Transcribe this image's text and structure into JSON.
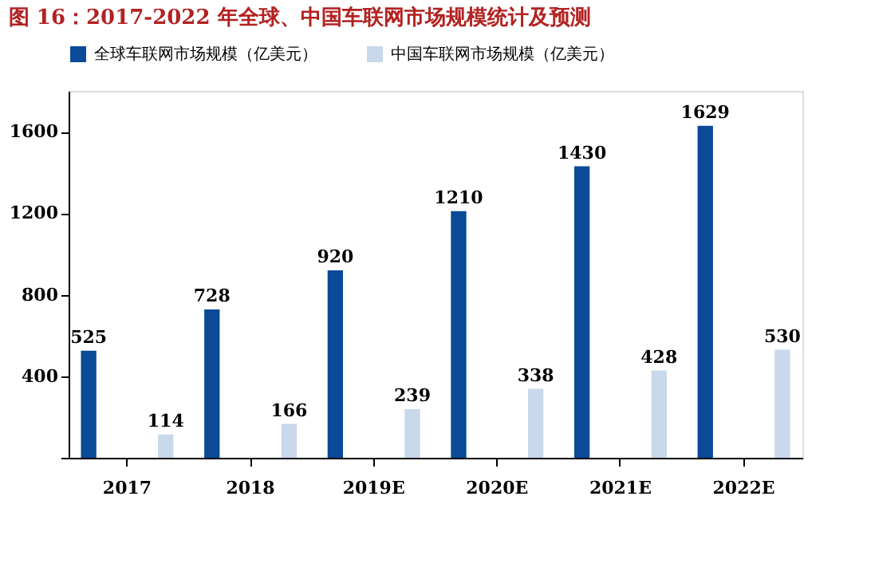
{
  "chart_data": {
    "type": "bar",
    "title": "图 16：2017-2022 年全球、中国车联网市场规模统计及预测",
    "categories": [
      "2017",
      "2018",
      "2019E",
      "2020E",
      "2021E",
      "2022E"
    ],
    "series": [
      {
        "name": "全球车联网市场规模（亿美元）",
        "color": "#0b4a96",
        "values": [
          525,
          728,
          920,
          1210,
          1430,
          1629
        ]
      },
      {
        "name": "中国车联网市场规模（亿美元）",
        "color": "#c9d8ea",
        "values": [
          114,
          166,
          239,
          338,
          428,
          530
        ]
      }
    ],
    "ylim": [
      0,
      1800
    ],
    "yticks": [
      {
        "value": 0,
        "label": null
      },
      400,
      800,
      1200,
      1600
    ],
    "data_labels": true,
    "grid": false,
    "legend": "top"
  }
}
